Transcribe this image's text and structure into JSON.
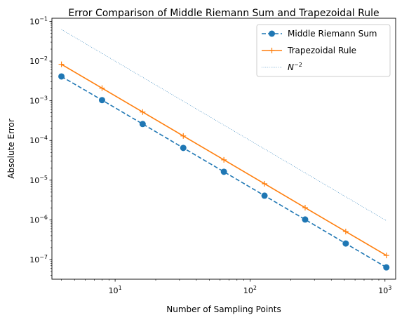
{
  "chart_data": {
    "type": "line",
    "title": "Error Comparison of Middle Riemann Sum and Trapezoidal Rule",
    "xlabel": "Number of Sampling Points",
    "ylabel": "Absolute Error",
    "xscale": "log",
    "yscale": "log",
    "xlim": [
      3.4,
      1200
    ],
    "ylim": [
      3.2e-08,
      0.12
    ],
    "x": [
      4,
      8,
      16,
      32,
      64,
      128,
      256,
      512,
      1024
    ],
    "x_ticks": [
      {
        "value": 10,
        "label": "10",
        "exp": "1"
      },
      {
        "value": 100,
        "label": "10",
        "exp": "2"
      },
      {
        "value": 1000,
        "label": "10",
        "exp": "3"
      }
    ],
    "y_ticks": [
      {
        "value": 1e-07,
        "label": "10",
        "exp": "−7"
      },
      {
        "value": 1e-06,
        "label": "10",
        "exp": "−6"
      },
      {
        "value": 1e-05,
        "label": "10",
        "exp": "−5"
      },
      {
        "value": 0.0001,
        "label": "10",
        "exp": "−4"
      },
      {
        "value": 0.001,
        "label": "10",
        "exp": "−3"
      },
      {
        "value": 0.01,
        "label": "10",
        "exp": "−2"
      },
      {
        "value": 0.1,
        "label": "10",
        "exp": "−1"
      }
    ],
    "series": [
      {
        "name": "Middle Riemann Sum",
        "color": "#1f77b4",
        "linestyle": "dashed",
        "marker": "circle",
        "values": [
          0.0041,
          0.00104,
          0.00026,
          6.5e-05,
          1.63e-05,
          4.07e-06,
          1.02e-06,
          2.54e-07,
          6.35e-08
        ]
      },
      {
        "name": "Trapezoidal Rule",
        "color": "#ff7f0e",
        "linestyle": "solid",
        "marker": "plus",
        "values": [
          0.0083,
          0.00208,
          0.00052,
          0.00013,
          3.25e-05,
          8.13e-06,
          2.03e-06,
          5.08e-07,
          1.27e-07
        ]
      },
      {
        "name": "N",
        "name_sup": "−2",
        "color": "#1f77b4",
        "linestyle": "dotted",
        "marker": "none",
        "values": [
          0.0625,
          0.015625,
          0.00390625,
          0.0009765625,
          0.000244140625,
          6.103515625e-05,
          1.52587890625e-05,
          3.814697265625e-06,
          9.5367431640625e-07
        ]
      }
    ],
    "legend_position": "top-right",
    "grid": false
  }
}
